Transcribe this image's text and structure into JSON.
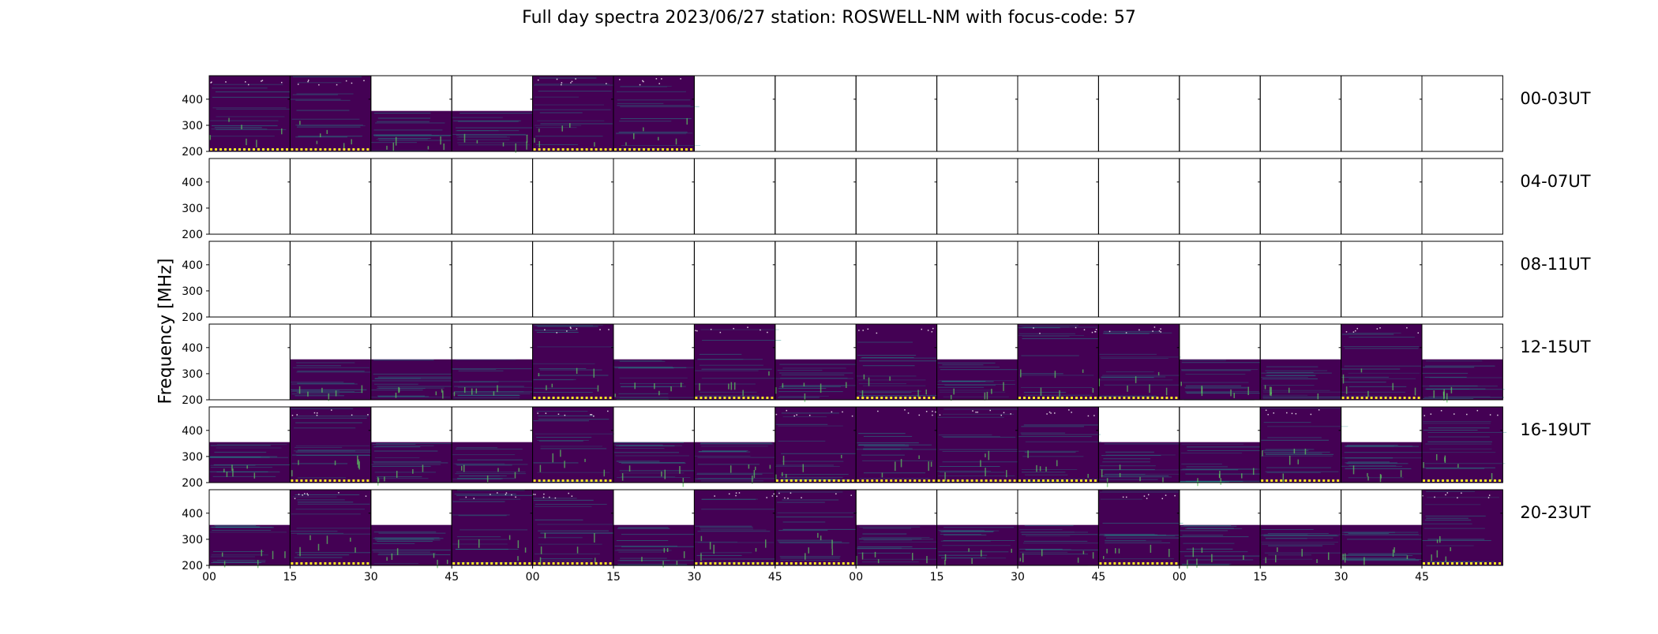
{
  "chart_data": {
    "type": "heatmap",
    "title": "Full day spectra 2023/06/27 station: ROSWELL-NM with focus-code: 57",
    "xlabel": "",
    "ylabel": "Frequency [MHz]",
    "ylim": [
      200,
      490
    ],
    "y_ticks": [
      "200",
      "300",
      "400"
    ],
    "x_ticks": [
      "00",
      "15",
      "30",
      "45",
      "00",
      "15",
      "30",
      "45",
      "00",
      "15",
      "30",
      "45",
      "00",
      "15",
      "30",
      "45"
    ],
    "colormap": "viridis",
    "grid": false,
    "row_labels": [
      "00-03UT",
      "04-07UT",
      "08-11UT",
      "12-15UT",
      "16-19UT",
      "20-23UT"
    ],
    "panel_max_freq_mhz": [
      [
        490,
        490,
        355,
        355,
        490,
        490,
        null,
        null,
        null,
        null,
        null,
        null,
        null,
        null,
        null,
        null
      ],
      [
        null,
        null,
        null,
        null,
        null,
        null,
        null,
        null,
        null,
        null,
        null,
        null,
        null,
        null,
        null,
        null
      ],
      [
        null,
        null,
        null,
        null,
        null,
        null,
        null,
        null,
        null,
        null,
        null,
        null,
        null,
        null,
        null,
        null
      ],
      [
        null,
        355,
        355,
        355,
        490,
        355,
        490,
        355,
        490,
        355,
        490,
        490,
        355,
        355,
        490,
        355
      ],
      [
        355,
        490,
        355,
        355,
        490,
        355,
        355,
        490,
        490,
        490,
        490,
        355,
        355,
        490,
        355,
        490
      ],
      [
        355,
        490,
        355,
        490,
        490,
        355,
        490,
        490,
        355,
        355,
        355,
        490,
        355,
        355,
        355,
        490
      ]
    ]
  },
  "colors": {
    "background": "#440154",
    "streak": "#21918c",
    "bright": "#5ec962",
    "saturated": "#fde725"
  }
}
